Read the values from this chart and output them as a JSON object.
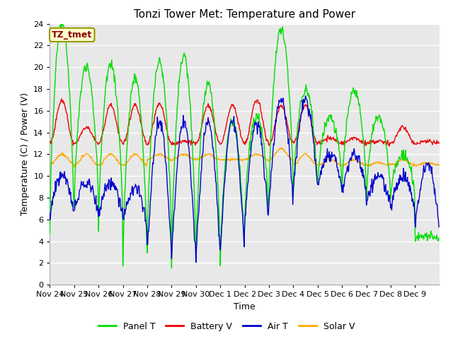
{
  "title": "Tonzi Tower Met: Temperature and Power",
  "xlabel": "Time",
  "ylabel": "Temperature (C) / Power (V)",
  "ylim": [
    0,
    24
  ],
  "yticks": [
    0,
    2,
    4,
    6,
    8,
    10,
    12,
    14,
    16,
    18,
    20,
    22,
    24
  ],
  "x_labels": [
    "Nov 24",
    "Nov 25",
    "Nov 26",
    "Nov 27",
    "Nov 28",
    "Nov 29",
    "Nov 30",
    "Dec 1",
    "Dec 2",
    "Dec 3",
    "Dec 4",
    "Dec 5",
    "Dec 6",
    "Dec 7",
    "Dec 8",
    "Dec 9"
  ],
  "legend_label": "TZ_tmet",
  "legend_box_facecolor": "#ffffcc",
  "legend_text_color": "#880000",
  "legend_edge_color": "#999900",
  "colors": {
    "panel_t": "#00dd00",
    "battery_v": "#ee0000",
    "air_t": "#0000cc",
    "solar_v": "#ffaa00"
  },
  "bg_color": "#e8e8e8",
  "grid_color": "#ffffff",
  "line_width": 1.0,
  "title_fontsize": 11,
  "label_fontsize": 9,
  "tick_fontsize": 8
}
